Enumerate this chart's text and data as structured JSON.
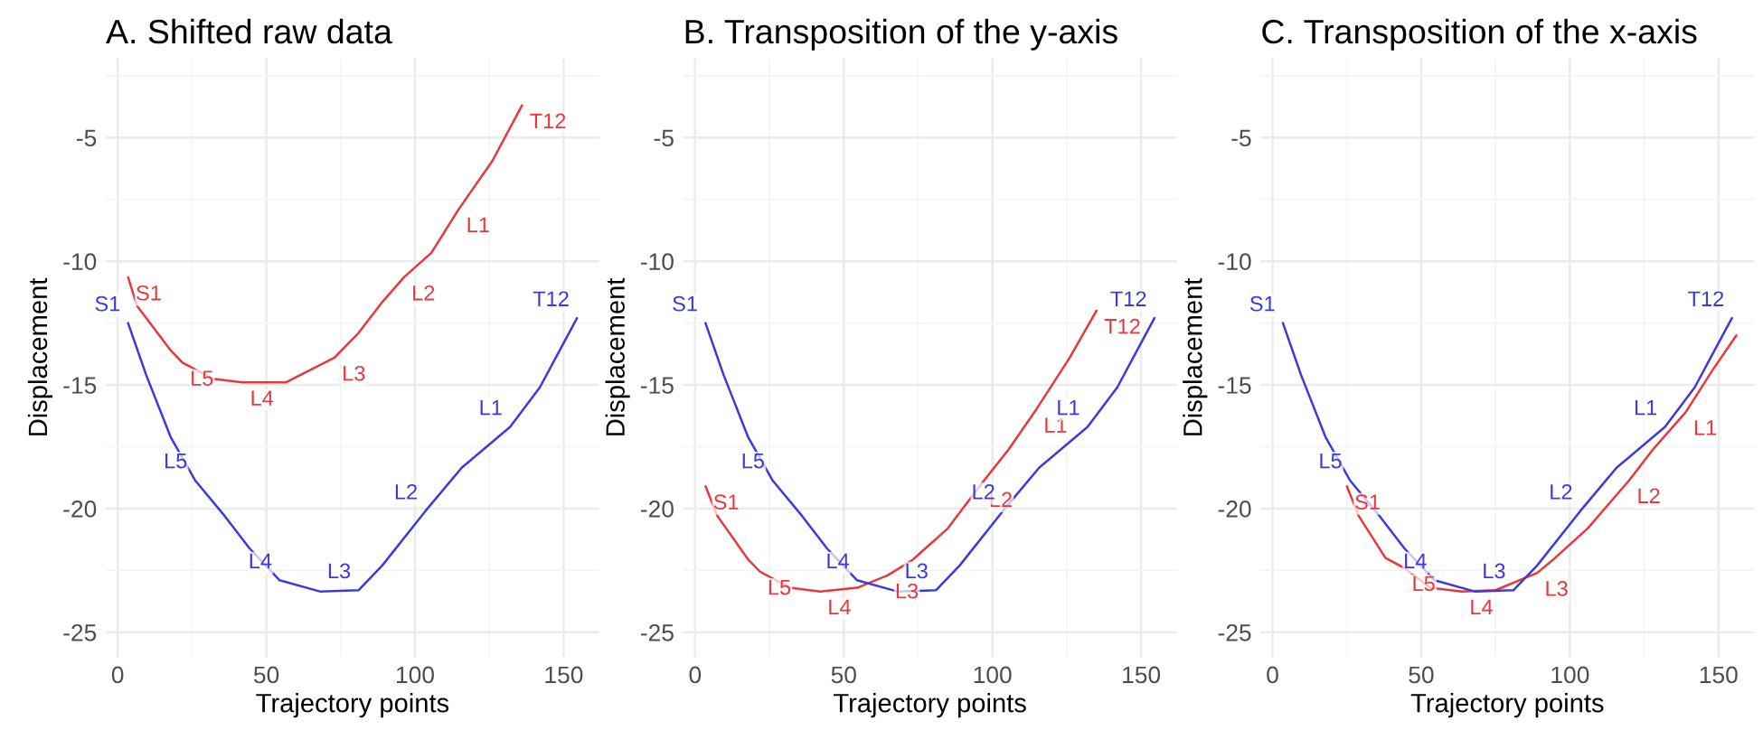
{
  "chart_data": [
    {
      "type": "line",
      "title": "A. Shifted raw data",
      "xlabel": "Trajectory points",
      "ylabel": "Displacement",
      "xlim": [
        -4,
        162
      ],
      "ylim": [
        -26,
        -1.8
      ],
      "xticks": [
        0,
        50,
        100,
        150
      ],
      "yticks": [
        -25,
        -20,
        -15,
        -10,
        -5
      ],
      "grid": true,
      "series": [
        {
          "color": "#e8383b",
          "x": [
            3.5,
            6.5,
            17.8,
            21.8,
            32,
            42,
            56.5,
            64.7,
            72.9,
            81,
            89,
            96.3,
            105.5,
            114.7,
            126,
            136
          ],
          "values": [
            -10.65,
            -11.8,
            -13.6,
            -14.1,
            -14.75,
            -14.9,
            -14.9,
            -14.4,
            -13.9,
            -12.9,
            -11.65,
            -10.65,
            -9.66,
            -7.9,
            -5.95,
            -3.7
          ]
        },
        {
          "color": "#3a3ae0",
          "x": [
            3.5,
            9.6,
            17.8,
            26,
            36,
            44.3,
            54.5,
            68,
            81,
            89,
            103.5,
            115.7,
            132,
            142,
            148,
            154.5
          ],
          "values": [
            -12.5,
            -14.6,
            -17.1,
            -18.85,
            -20.3,
            -21.6,
            -22.9,
            -23.35,
            -23.3,
            -22.3,
            -20.1,
            -18.35,
            -16.7,
            -15.1,
            -13.75,
            -12.3
          ]
        }
      ],
      "annotations": [
        {
          "text": "S1",
          "x": 3.5,
          "y": -10.65
        },
        {
          "text": "L5",
          "x": 21.8,
          "y": -14.1
        },
        {
          "text": "L4",
          "x": 42,
          "y": -14.9
        },
        {
          "text": "L3",
          "x": 72.9,
          "y": -13.9
        },
        {
          "text": "L2",
          "x": 96.3,
          "y": -10.65
        },
        {
          "text": "L1",
          "x": 114.7,
          "y": -7.9
        },
        {
          "text": "T12",
          "x": 136,
          "y": -3.7
        },
        {
          "text": "S1",
          "x": 3.5,
          "y": -12.5
        },
        {
          "text": "L5",
          "x": 26,
          "y": -18.85
        },
        {
          "text": "L4",
          "x": 54.5,
          "y": -22.9
        },
        {
          "text": "L3",
          "x": 81,
          "y": -23.3
        },
        {
          "text": "L2",
          "x": 103.5,
          "y": -20.1
        },
        {
          "text": "L1",
          "x": 132,
          "y": -16.7
        },
        {
          "text": "T12",
          "x": 154.5,
          "y": -12.3
        }
      ]
    },
    {
      "type": "line",
      "title": "B. Transposition of the y-axis",
      "xlabel": "Trajectory points",
      "ylabel": "Displacement",
      "xlim": [
        -4,
        162
      ],
      "ylim": [
        -26,
        -1.8
      ],
      "xticks": [
        0,
        50,
        100,
        150
      ],
      "yticks": [
        -25,
        -20,
        -15,
        -10,
        -5
      ],
      "grid": true,
      "series": [
        {
          "color": "#e8383b",
          "x": [
            3.5,
            7.5,
            17.8,
            21.8,
            32,
            42,
            54.5,
            64.7,
            72.9,
            85,
            96.3,
            105.5,
            114.7,
            126,
            135
          ],
          "values": [
            -19.1,
            -20.3,
            -22.05,
            -22.55,
            -23.2,
            -23.35,
            -23.2,
            -22.7,
            -22.1,
            -20.8,
            -19.0,
            -17.6,
            -16.0,
            -13.9,
            -12.0
          ]
        },
        {
          "color": "#3a3ae0",
          "x": [
            3.5,
            9.6,
            17.8,
            26,
            36,
            44.3,
            54.5,
            68,
            81,
            89,
            103.5,
            115.7,
            132,
            142,
            148,
            154.5
          ],
          "values": [
            -12.5,
            -14.6,
            -17.1,
            -18.85,
            -20.3,
            -21.6,
            -22.9,
            -23.35,
            -23.3,
            -22.3,
            -20.1,
            -18.35,
            -16.7,
            -15.1,
            -13.75,
            -12.3
          ]
        }
      ],
      "annotations": [
        {
          "text": "S1",
          "x": 3.5,
          "y": -19.1
        },
        {
          "text": "L5",
          "x": 21.8,
          "y": -22.55
        },
        {
          "text": "L4",
          "x": 42,
          "y": -23.35
        },
        {
          "text": "L3",
          "x": 64.7,
          "y": -22.7
        },
        {
          "text": "L2",
          "x": 96.3,
          "y": -19.0
        },
        {
          "text": "L1",
          "x": 114.7,
          "y": -16.0
        },
        {
          "text": "T12",
          "x": 135,
          "y": -12.0
        },
        {
          "text": "S1",
          "x": 3.5,
          "y": -12.5
        },
        {
          "text": "L5",
          "x": 26,
          "y": -18.85
        },
        {
          "text": "L4",
          "x": 54.5,
          "y": -22.9
        },
        {
          "text": "L3",
          "x": 81,
          "y": -23.3
        },
        {
          "text": "L2",
          "x": 103.5,
          "y": -20.1
        },
        {
          "text": "L1",
          "x": 132,
          "y": -16.7
        },
        {
          "text": "T12",
          "x": 154.5,
          "y": -12.3
        }
      ]
    },
    {
      "type": "line",
      "title": "C. Transposition of the x-axis",
      "xlabel": "Trajectory points",
      "ylabel": "Displacement",
      "xlim": [
        -4,
        162
      ],
      "ylim": [
        -26,
        -1.8
      ],
      "xticks": [
        0,
        50,
        100,
        150
      ],
      "yticks": [
        -25,
        -20,
        -15,
        -10,
        -5
      ],
      "grid": true,
      "series": [
        {
          "color": "#e8383b",
          "x": [
            25,
            29,
            38,
            44.3,
            53,
            63.7,
            75,
            89,
            95,
            106,
            120,
            128,
            139,
            148,
            156
          ],
          "values": [
            -19.1,
            -20.3,
            -22.0,
            -22.4,
            -23.2,
            -23.35,
            -23.3,
            -22.6,
            -22.0,
            -20.8,
            -18.85,
            -17.6,
            -16.1,
            -14.4,
            -13.0
          ]
        },
        {
          "color": "#3a3ae0",
          "x": [
            3.5,
            9.6,
            17.8,
            26,
            36,
            44.3,
            54.5,
            68,
            81,
            89,
            103.5,
            115.7,
            132,
            142,
            148,
            154.5
          ],
          "values": [
            -12.5,
            -14.6,
            -17.1,
            -18.85,
            -20.3,
            -21.6,
            -22.9,
            -23.35,
            -23.3,
            -22.3,
            -20.1,
            -18.35,
            -16.7,
            -15.1,
            -13.75,
            -12.3
          ]
        }
      ],
      "annotations": [
        {
          "text": "S1",
          "x": 25,
          "y": -19.1
        },
        {
          "text": "L5",
          "x": 44.3,
          "y": -22.4
        },
        {
          "text": "L4",
          "x": 63.7,
          "y": -23.35
        },
        {
          "text": "L3",
          "x": 89,
          "y": -22.6
        },
        {
          "text": "L2",
          "x": 120,
          "y": -18.85
        },
        {
          "text": "L1",
          "x": 139,
          "y": -16.1
        },
        {
          "text": "S1",
          "x": 3.5,
          "y": -12.5
        },
        {
          "text": "L5",
          "x": 26,
          "y": -18.85
        },
        {
          "text": "L4",
          "x": 54.5,
          "y": -22.9
        },
        {
          "text": "L3",
          "x": 81,
          "y": -23.3
        },
        {
          "text": "L2",
          "x": 103.5,
          "y": -20.1
        },
        {
          "text": "L1",
          "x": 132,
          "y": -16.7
        },
        {
          "text": "T12",
          "x": 154.5,
          "y": -12.3
        }
      ]
    }
  ]
}
